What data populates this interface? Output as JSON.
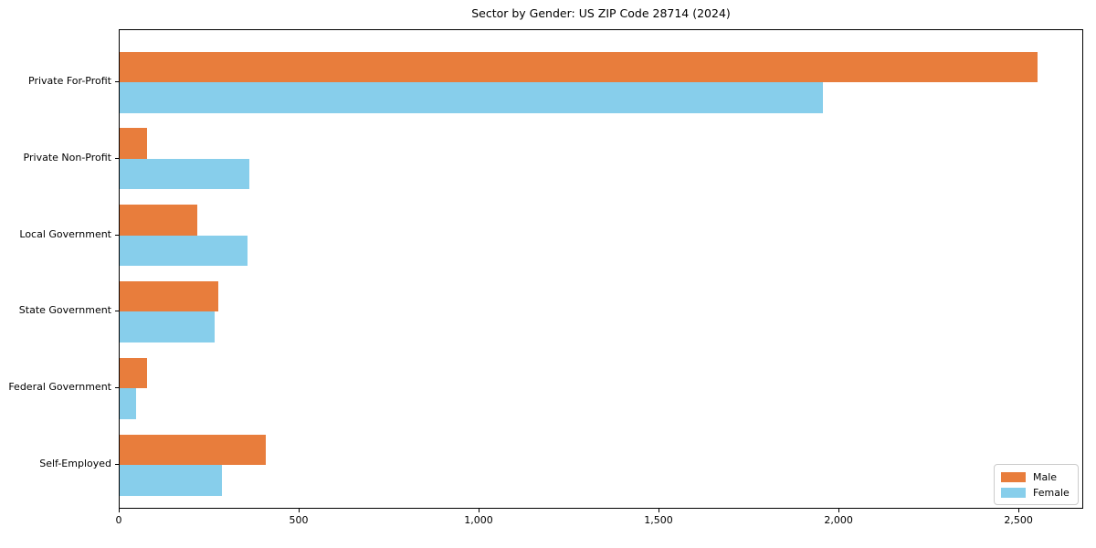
{
  "chart_data": {
    "type": "bar",
    "orientation": "horizontal",
    "title": "Sector by Gender: US ZIP Code 28714 (2024)",
    "categories": [
      "Private For-Profit",
      "Private Non-Profit",
      "Local Government",
      "State Government",
      "Federal Government",
      "Self-Employed"
    ],
    "series": [
      {
        "name": "Male",
        "color": "#e87d3c",
        "values": [
          2550,
          75,
          215,
          275,
          75,
          405
        ]
      },
      {
        "name": "Female",
        "color": "#87ceeb",
        "values": [
          1955,
          360,
          355,
          265,
          45,
          285
        ]
      }
    ],
    "xlabel": "",
    "ylabel": "",
    "xlim": [
      0,
      2680
    ],
    "xticks": [
      0,
      500,
      1000,
      1500,
      2000,
      2500
    ],
    "xtick_labels": [
      "0",
      "500",
      "1,000",
      "1,500",
      "2,000",
      "2,500"
    ],
    "grid": false,
    "legend_position": "lower right",
    "spines": "full-box"
  }
}
